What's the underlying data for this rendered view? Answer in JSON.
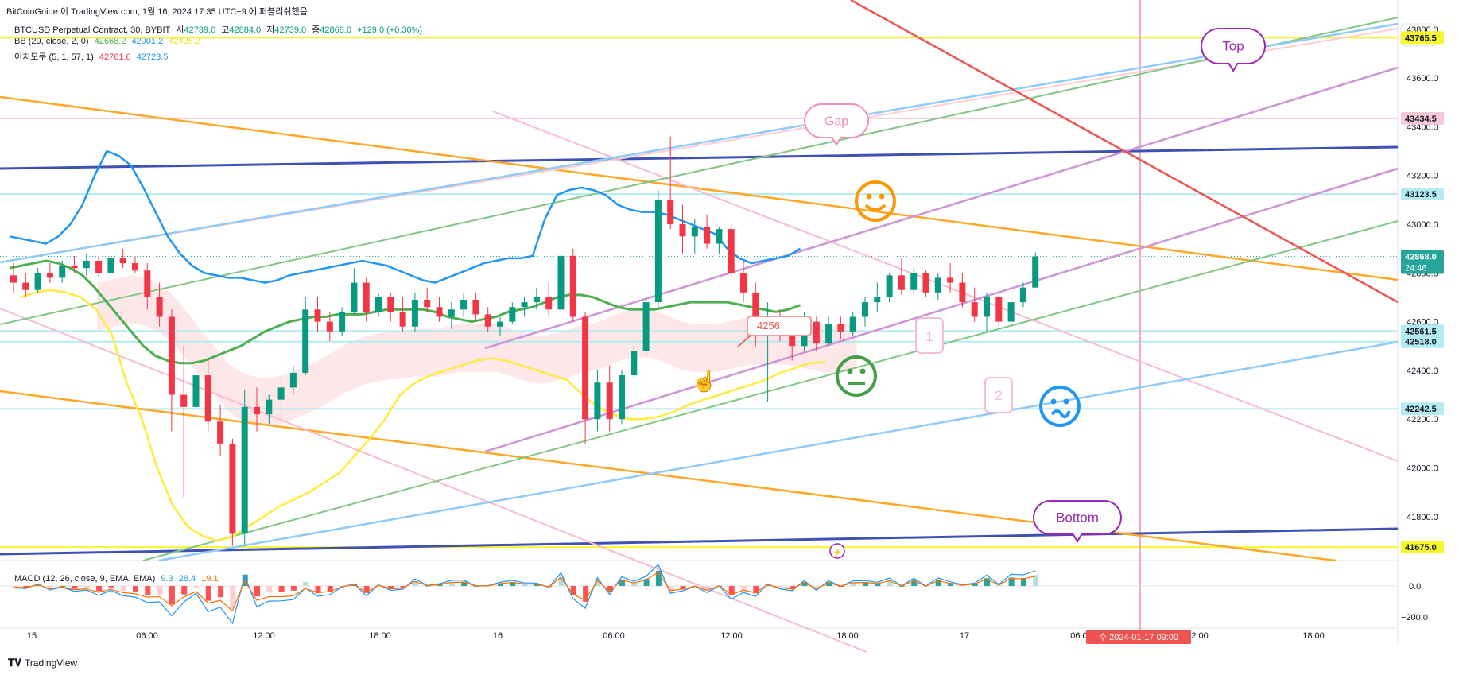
{
  "header": {
    "publisher_line": "BitCoinGuide 이 TradingView.com, 1월 16, 2024 17:35 UTC+9 에 퍼블리쉬했음",
    "symbol": "BTCUSD Perpetual Contract, 30, BYBIT",
    "ohlc": {
      "open_label": "시",
      "open": "42739.0",
      "high_label": "고",
      "high": "42884.0",
      "low_label": "저",
      "low": "42739.0",
      "close_label": "종",
      "close": "42868.0",
      "change": "+129.0 (+0.30%)"
    },
    "bb_label": "BB (20, close, 2, 0)",
    "bb_values": [
      "42668.2",
      "42901.2",
      "42435.2"
    ],
    "ichimoku_label": "이치모쿠 (5, 1, 57, 1)",
    "ichimoku_values": [
      "42761.6",
      "42723.5"
    ],
    "currency": "USD"
  },
  "macd": {
    "label": "MACD (12, 26, close, 9, EMA, EMA)",
    "values": [
      "9.3",
      "28.4",
      "19.1"
    ],
    "axis_ticks": [
      "0.0",
      "−200.0"
    ]
  },
  "chart_data": {
    "type": "candlestick",
    "symbol": "BTCUSD",
    "timeframe": "30",
    "exchange": "BYBIT",
    "ylim": [
      41620,
      43920
    ],
    "y_ticks": [
      41800,
      42000,
      42200,
      42400,
      42600,
      42800,
      43000,
      43200,
      43400,
      43600,
      43800
    ],
    "y_tick_labels": [
      "41800.0",
      "42000.0",
      "42200.0",
      "42400.0",
      "42600.0",
      "42800.0",
      "43000.0",
      "43200.0",
      "43400.0",
      "43600.0",
      "43800.0"
    ],
    "x_labels": [
      "15",
      "06:00",
      "12:00",
      "18:00",
      "16",
      "06:00",
      "12:00",
      "18:00",
      "17",
      "06:00",
      "12:00",
      "18:00"
    ],
    "hover_date_label": "수 2024-01-17  09:00",
    "price_badges": [
      {
        "label": "43765.5",
        "color": "#f7f72b",
        "text_color": "#131722"
      },
      {
        "label": "43434.5",
        "color": "#f8c9d4",
        "text_color": "#131722"
      },
      {
        "label": "43123.5",
        "color": "#b2ebf2",
        "text_color": "#131722"
      },
      {
        "label": "42868.0",
        "sub": "24:46",
        "color": "#26a69a",
        "text_color": "#ffffff"
      },
      {
        "label": "42561.5",
        "color": "#b2ebf2",
        "text_color": "#131722"
      },
      {
        "label": "42518.0",
        "color": "#b2ebf2",
        "text_color": "#131722"
      },
      {
        "label": "42242.5",
        "color": "#b2ebf2",
        "text_color": "#131722"
      },
      {
        "label": "41675.0",
        "color": "#f7f72b",
        "text_color": "#131722"
      }
    ],
    "horizontal_levels": [
      {
        "value": 43765.5,
        "color": "#f7f72b"
      },
      {
        "value": 43434.5,
        "color": "#f8c9d4"
      },
      {
        "value": 43123.5,
        "color": "#b2ebf2"
      },
      {
        "value": 42561.5,
        "color": "#b2ebf2"
      },
      {
        "value": 42518.0,
        "color": "#b2ebf2"
      },
      {
        "value": 42242.5,
        "color": "#b2ebf2"
      },
      {
        "value": 41675.0,
        "color": "#f7f72b"
      }
    ],
    "last_price": 42868.0,
    "candles": [
      [
        42790,
        42840,
        42720,
        42760
      ],
      [
        42760,
        42800,
        42700,
        42730
      ],
      [
        42730,
        42820,
        42720,
        42800
      ],
      [
        42800,
        42840,
        42760,
        42780
      ],
      [
        42780,
        42850,
        42760,
        42830
      ],
      [
        42830,
        42870,
        42800,
        42820
      ],
      [
        42820,
        42880,
        42790,
        42850
      ],
      [
        42850,
        42870,
        42780,
        42800
      ],
      [
        42800,
        42880,
        42780,
        42860
      ],
      [
        42860,
        42900,
        42820,
        42840
      ],
      [
        42840,
        42870,
        42800,
        42810
      ],
      [
        42810,
        42840,
        42650,
        42700
      ],
      [
        42700,
        42760,
        42580,
        42620
      ],
      [
        42620,
        42650,
        42150,
        42300
      ],
      [
        42300,
        42500,
        41880,
        42250
      ],
      [
        42250,
        42400,
        42180,
        42380
      ],
      [
        42380,
        42450,
        42150,
        42190
      ],
      [
        42190,
        42260,
        42050,
        42100
      ],
      [
        42100,
        42120,
        41680,
        41730
      ],
      [
        41730,
        42320,
        41680,
        42250
      ],
      [
        42250,
        42330,
        42150,
        42220
      ],
      [
        42220,
        42300,
        42180,
        42280
      ],
      [
        42280,
        42380,
        42200,
        42330
      ],
      [
        42330,
        42420,
        42300,
        42390
      ],
      [
        42390,
        42700,
        42380,
        42650
      ],
      [
        42650,
        42700,
        42560,
        42600
      ],
      [
        42600,
        42640,
        42520,
        42560
      ],
      [
        42560,
        42660,
        42540,
        42640
      ],
      [
        42640,
        42820,
        42630,
        42760
      ],
      [
        42760,
        42780,
        42600,
        42640
      ],
      [
        42640,
        42720,
        42620,
        42700
      ],
      [
        42700,
        42720,
        42600,
        42640
      ],
      [
        42640,
        42700,
        42560,
        42580
      ],
      [
        42580,
        42720,
        42560,
        42690
      ],
      [
        42690,
        42740,
        42640,
        42660
      ],
      [
        42660,
        42700,
        42600,
        42620
      ],
      [
        42620,
        42680,
        42570,
        42650
      ],
      [
        42650,
        42720,
        42620,
        42690
      ],
      [
        42690,
        42720,
        42600,
        42630
      ],
      [
        42630,
        42660,
        42560,
        42580
      ],
      [
        42580,
        42620,
        42540,
        42600
      ],
      [
        42600,
        42680,
        42590,
        42660
      ],
      [
        42660,
        42700,
        42620,
        42680
      ],
      [
        42680,
        42740,
        42650,
        42700
      ],
      [
        42700,
        42760,
        42620,
        42650
      ],
      [
        42650,
        42900,
        42630,
        42870
      ],
      [
        42870,
        42900,
        42600,
        42620
      ],
      [
        42620,
        42640,
        42100,
        42200
      ],
      [
        42200,
        42400,
        42150,
        42350
      ],
      [
        42350,
        42420,
        42150,
        42200
      ],
      [
        42200,
        42400,
        42180,
        42380
      ],
      [
        42380,
        42500,
        42370,
        42480
      ],
      [
        42480,
        42700,
        42450,
        42680
      ],
      [
        42680,
        43140,
        42660,
        43100
      ],
      [
        43100,
        43360,
        42980,
        43000
      ],
      [
        43000,
        43080,
        42880,
        42950
      ],
      [
        42950,
        43020,
        42880,
        42990
      ],
      [
        42990,
        43040,
        42900,
        42920
      ],
      [
        42920,
        42990,
        42880,
        42980
      ],
      [
        42980,
        43000,
        42780,
        42800
      ],
      [
        42800,
        42850,
        42680,
        42720
      ],
      [
        42720,
        42760,
        42500,
        42560
      ],
      [
        42560,
        42680,
        42270,
        42620
      ],
      [
        42620,
        42650,
        42520,
        42580
      ],
      [
        42580,
        42600,
        42440,
        42500
      ],
      [
        42500,
        42640,
        42480,
        42600
      ],
      [
        42600,
        42620,
        42480,
        42510
      ],
      [
        42510,
        42620,
        42500,
        42590
      ],
      [
        42590,
        42620,
        42530,
        42560
      ],
      [
        42560,
        42640,
        42540,
        42620
      ],
      [
        42620,
        42700,
        42580,
        42680
      ],
      [
        42680,
        42760,
        42640,
        42700
      ],
      [
        42700,
        42800,
        42680,
        42790
      ],
      [
        42790,
        42860,
        42710,
        42730
      ],
      [
        42730,
        42820,
        42720,
        42800
      ],
      [
        42800,
        42810,
        42700,
        42720
      ],
      [
        42720,
        42800,
        42690,
        42780
      ],
      [
        42780,
        42840,
        42720,
        42760
      ],
      [
        42760,
        42800,
        42660,
        42680
      ],
      [
        42680,
        42740,
        42600,
        42620
      ],
      [
        42620,
        42720,
        42560,
        42700
      ],
      [
        42700,
        42720,
        42580,
        42600
      ],
      [
        42600,
        42700,
        42580,
        42680
      ],
      [
        42680,
        42760,
        42660,
        42740
      ],
      [
        42740,
        42884,
        42739,
        42868
      ]
    ],
    "bollinger_upper": [
      42950,
      42940,
      42930,
      42920,
      42950,
      43000,
      43080,
      43200,
      43300,
      43280,
      43240,
      43150,
      43050,
      42950,
      42880,
      42830,
      42800,
      42790,
      42780,
      42780,
      42770,
      42760,
      42770,
      42790,
      42800,
      42810,
      42820,
      42830,
      42840,
      42850,
      42840,
      42830,
      42810,
      42790,
      42770,
      42760,
      42780,
      42800,
      42820,
      42840,
      42850,
      42860,
      42860,
      42870,
      43020,
      43120,
      43140,
      43150,
      43140,
      43120,
      43080,
      43060,
      43050,
      43050,
      43040,
      43020,
      43000,
      42980,
      42960,
      42900,
      42860,
      42840,
      42850,
      42860,
      42870,
      42900
    ],
    "bollinger_basis": [
      42820,
      42830,
      42840,
      42850,
      42840,
      42820,
      42790,
      42740,
      42680,
      42620,
      42560,
      42500,
      42460,
      42440,
      42430,
      42430,
      42440,
      42460,
      42480,
      42500,
      42530,
      42560,
      42580,
      42600,
      42610,
      42620,
      42620,
      42630,
      42630,
      42630,
      42640,
      42650,
      42650,
      42650,
      42650,
      42640,
      42620,
      42610,
      42600,
      42610,
      42620,
      42640,
      42650,
      42660,
      42680,
      42700,
      42710,
      42710,
      42700,
      42680,
      42660,
      42650,
      42650,
      42650,
      42660,
      42670,
      42680,
      42680,
      42680,
      42680,
      42670,
      42660,
      42650,
      42640,
      42650,
      42668
    ],
    "ichimoku_lagging": [
      42700,
      42720,
      42730,
      42720,
      42700,
      42650,
      42550,
      42350,
      42200,
      42000,
      41850,
      41760,
      41720,
      41700,
      41720,
      41760,
      41800,
      41840,
      41870,
      41900,
      41940,
      41980,
      42050,
      42120,
      42200,
      42300,
      42350,
      42380,
      42400,
      42420,
      42440,
      42450,
      42440,
      42420,
      42400,
      42380,
      42360,
      42300,
      42250,
      42220,
      42200,
      42200,
      42210,
      42230,
      42260,
      42280,
      42300,
      42320,
      42340,
      42360,
      42390,
      42410,
      42430,
      42435
    ],
    "annotations": {
      "top": "Top",
      "gap": "Gap",
      "bottom": "Bottom",
      "one": "1",
      "two": "2",
      "price_note": "4256"
    }
  }
}
